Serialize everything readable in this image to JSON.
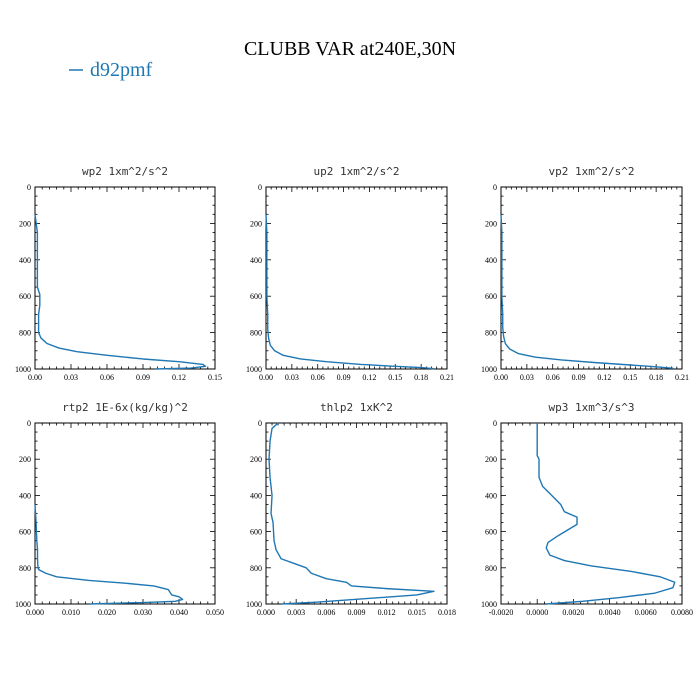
{
  "figure": {
    "title": "CLUBB VAR at240E,30N",
    "legend": {
      "label": "d92pmf",
      "color": "#1f77b4"
    }
  },
  "chart_data": [
    {
      "type": "line",
      "title": "wp2  1xm^2/s^2",
      "xlim": [
        0,
        0.15
      ],
      "xticks": [
        0.0,
        0.03,
        0.06,
        0.09,
        0.12,
        0.15
      ],
      "xtick_labels": [
        "0.00",
        "0.03",
        "0.06",
        "0.09",
        "0.12",
        "0.15"
      ],
      "ylim": [
        0,
        1000
      ],
      "yticks": [
        0,
        200,
        400,
        600,
        800,
        1000
      ],
      "ytick_labels": [
        "0",
        "200",
        "400",
        "600",
        "800",
        "1000"
      ],
      "y_inverted": true,
      "series": [
        {
          "x": [
            0.0,
            0.001,
            0.002,
            0.002,
            0.002,
            0.002,
            0.002,
            0.004,
            0.004,
            0.003,
            0.003,
            0.005,
            0.01,
            0.02,
            0.035,
            0.06,
            0.09,
            0.12,
            0.14,
            0.142,
            0.13,
            0.1
          ],
          "y": [
            150,
            200,
            250,
            300,
            400,
            500,
            550,
            590,
            650,
            700,
            800,
            830,
            860,
            885,
            905,
            925,
            945,
            960,
            975,
            985,
            995,
            1000
          ]
        }
      ]
    },
    {
      "type": "line",
      "title": "up2  1xm^2/s^2",
      "xlim": [
        0,
        0.21
      ],
      "xticks": [
        0.0,
        0.03,
        0.06,
        0.09,
        0.12,
        0.15,
        0.18,
        0.21
      ],
      "xtick_labels": [
        "0.00",
        "0.03",
        "0.06",
        "0.09",
        "0.12",
        "0.15",
        "0.18",
        "0.21"
      ],
      "ylim": [
        0,
        1000
      ],
      "yticks": [
        0,
        200,
        400,
        600,
        800,
        1000
      ],
      "ytick_labels": [
        "0",
        "200",
        "400",
        "600",
        "800",
        "1000"
      ],
      "y_inverted": true,
      "series": [
        {
          "x": [
            0.0,
            0.001,
            0.001,
            0.001,
            0.002,
            0.002,
            0.003,
            0.005,
            0.01,
            0.02,
            0.04,
            0.07,
            0.11,
            0.15,
            0.18,
            0.195
          ],
          "y": [
            150,
            250,
            400,
            600,
            700,
            780,
            830,
            870,
            900,
            925,
            945,
            960,
            975,
            985,
            992,
            998
          ]
        }
      ]
    },
    {
      "type": "line",
      "title": "vp2  1xm^2/s^2",
      "xlim": [
        0,
        0.21
      ],
      "xticks": [
        0.0,
        0.03,
        0.06,
        0.09,
        0.12,
        0.15,
        0.18,
        0.21
      ],
      "xtick_labels": [
        "0.00",
        "0.03",
        "0.06",
        "0.09",
        "0.12",
        "0.15",
        "0.18",
        "0.21"
      ],
      "ylim": [
        0,
        1000
      ],
      "yticks": [
        0,
        200,
        400,
        600,
        800,
        1000
      ],
      "ytick_labels": [
        "0",
        "200",
        "400",
        "600",
        "800",
        "1000"
      ],
      "y_inverted": true,
      "series": [
        {
          "x": [
            0.0,
            0.001,
            0.001,
            0.001,
            0.002,
            0.002,
            0.003,
            0.005,
            0.01,
            0.02,
            0.04,
            0.07,
            0.11,
            0.15,
            0.18,
            0.2
          ],
          "y": [
            150,
            250,
            400,
            600,
            700,
            770,
            820,
            860,
            890,
            915,
            935,
            950,
            965,
            978,
            988,
            996
          ]
        }
      ]
    },
    {
      "type": "line",
      "title": "rtp2  1E-6x(kg/kg)^2",
      "xlim": [
        0,
        0.05
      ],
      "xticks": [
        0.0,
        0.01,
        0.02,
        0.03,
        0.04,
        0.05
      ],
      "xtick_labels": [
        "0.000",
        "0.010",
        "0.020",
        "0.030",
        "0.040",
        "0.050"
      ],
      "ylim": [
        0,
        1000
      ],
      "yticks": [
        0,
        200,
        400,
        600,
        800,
        1000
      ],
      "ytick_labels": [
        "0",
        "200",
        "400",
        "600",
        "800",
        "1000"
      ],
      "y_inverted": true,
      "series": [
        {
          "x": [
            0.0,
            0.0003,
            0.0005,
            0.0007,
            0.0007,
            0.0008,
            0.001,
            0.003,
            0.006,
            0.015,
            0.025,
            0.033,
            0.037,
            0.038,
            0.04,
            0.041,
            0.039,
            0.03,
            0.015
          ],
          "y": [
            450,
            550,
            650,
            700,
            750,
            790,
            810,
            830,
            850,
            870,
            885,
            900,
            920,
            950,
            960,
            975,
            985,
            992,
            1000
          ]
        }
      ]
    },
    {
      "type": "line",
      "title": "thlp2  1xK^2",
      "xlim": [
        0,
        0.018
      ],
      "xticks": [
        0.0,
        0.003,
        0.006,
        0.009,
        0.012,
        0.015,
        0.018
      ],
      "xtick_labels": [
        "0.000",
        "0.003",
        "0.006",
        "0.009",
        "0.012",
        "0.015",
        "0.018"
      ],
      "ylim": [
        0,
        1000
      ],
      "yticks": [
        0,
        200,
        400,
        600,
        800,
        1000
      ],
      "ytick_labels": [
        "0",
        "200",
        "400",
        "600",
        "800",
        "1000"
      ],
      "y_inverted": true,
      "series": [
        {
          "x": [
            0.0012,
            0.0006,
            0.0004,
            0.0003,
            0.0004,
            0.0006,
            0.0005,
            0.0007,
            0.0008,
            0.001,
            0.0015,
            0.003,
            0.004,
            0.0045,
            0.006,
            0.008,
            0.0085,
            0.012,
            0.0167,
            0.015,
            0.01,
            0.005,
            0.0015
          ],
          "y": [
            0,
            30,
            100,
            200,
            300,
            400,
            500,
            550,
            650,
            700,
            750,
            780,
            800,
            830,
            860,
            880,
            900,
            915,
            930,
            950,
            970,
            990,
            1000
          ]
        }
      ]
    },
    {
      "type": "line",
      "title": "wp3  1xm^3/s^3",
      "xlim": [
        -0.002,
        0.008
      ],
      "xticks": [
        -0.002,
        0.0,
        0.002,
        0.004,
        0.006,
        0.008
      ],
      "xtick_labels": [
        "-0.0020",
        "0.0000",
        "0.0020",
        "0.0040",
        "0.0060",
        "0.0080"
      ],
      "ylim": [
        0,
        1000
      ],
      "yticks": [
        0,
        200,
        400,
        600,
        800,
        1000
      ],
      "ytick_labels": [
        "0",
        "200",
        "400",
        "600",
        "800",
        "1000"
      ],
      "y_inverted": true,
      "series": [
        {
          "x": [
            0.0,
            0.0,
            0.0,
            0.0001,
            0.0001,
            0.0003,
            0.0008,
            0.0013,
            0.0015,
            0.0022,
            0.0022,
            0.0012,
            0.0006,
            0.0005,
            0.0007,
            0.0015,
            0.003,
            0.0052,
            0.0068,
            0.0076,
            0.0075,
            0.0065,
            0.0045,
            0.0025,
            0.0005
          ],
          "y": [
            0,
            100,
            180,
            200,
            300,
            350,
            400,
            450,
            490,
            520,
            560,
            620,
            660,
            690,
            730,
            760,
            790,
            820,
            850,
            880,
            910,
            940,
            965,
            985,
            1000
          ]
        }
      ]
    }
  ]
}
